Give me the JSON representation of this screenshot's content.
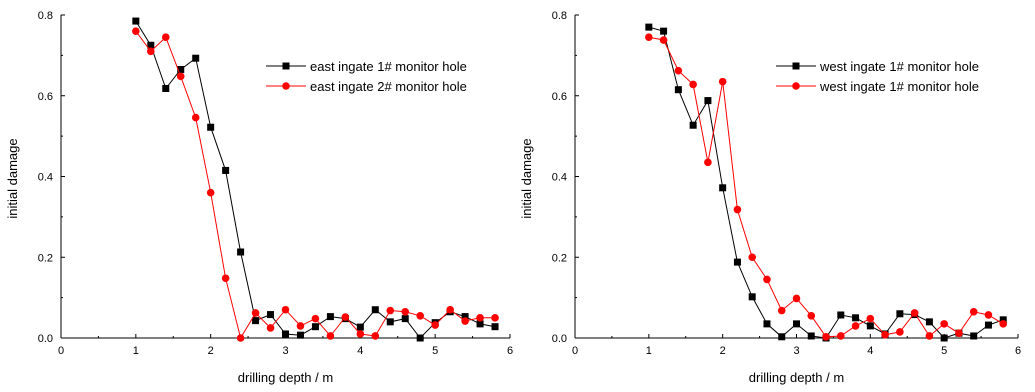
{
  "chart_data": [
    {
      "type": "line",
      "xlabel": "drilling depth / m",
      "ylabel": "initial damage",
      "xlim": [
        0,
        6
      ],
      "ylim": [
        0,
        0.8
      ],
      "xticks": [
        0,
        1,
        2,
        3,
        4,
        5,
        6
      ],
      "yticks": [
        0.0,
        0.2,
        0.4,
        0.6,
        0.8
      ],
      "grid": false,
      "legend_position": "top-right",
      "series": [
        {
          "name": "east ingate 1# monitor hole",
          "color": "#000000",
          "marker": "square",
          "x": [
            1.0,
            1.2,
            1.4,
            1.6,
            1.8,
            2.0,
            2.2,
            2.4,
            2.6,
            2.8,
            3.0,
            3.2,
            3.4,
            3.6,
            3.8,
            4.0,
            4.2,
            4.4,
            4.6,
            4.8,
            5.0,
            5.2,
            5.4,
            5.6,
            5.8
          ],
          "y": [
            0.785,
            0.725,
            0.618,
            0.665,
            0.693,
            0.522,
            0.415,
            0.213,
            0.043,
            0.058,
            0.01,
            0.007,
            0.028,
            0.053,
            0.048,
            0.027,
            0.07,
            0.04,
            0.048,
            0.0,
            0.038,
            0.065,
            0.053,
            0.035,
            0.028
          ]
        },
        {
          "name": "east ingate 2# monitor hole",
          "color": "#ff0000",
          "marker": "circle",
          "x": [
            1.0,
            1.2,
            1.4,
            1.6,
            1.8,
            2.0,
            2.2,
            2.4,
            2.6,
            2.8,
            3.0,
            3.2,
            3.4,
            3.6,
            3.8,
            4.0,
            4.2,
            4.4,
            4.6,
            4.8,
            5.0,
            5.2,
            5.4,
            5.6,
            5.8
          ],
          "y": [
            0.76,
            0.71,
            0.745,
            0.648,
            0.546,
            0.36,
            0.148,
            0.0,
            0.062,
            0.025,
            0.07,
            0.03,
            0.048,
            0.005,
            0.052,
            0.01,
            0.005,
            0.068,
            0.065,
            0.055,
            0.032,
            0.07,
            0.042,
            0.05,
            0.05
          ]
        }
      ]
    },
    {
      "type": "line",
      "xlabel": "drilling depth / m",
      "ylabel": "initial damage",
      "xlim": [
        0,
        6
      ],
      "ylim": [
        0,
        0.8
      ],
      "xticks": [
        0,
        1,
        2,
        3,
        4,
        5,
        6
      ],
      "yticks": [
        0.0,
        0.2,
        0.4,
        0.6,
        0.8
      ],
      "grid": false,
      "legend_position": "top-right",
      "series": [
        {
          "name": "west ingate 1# monitor hole",
          "color": "#000000",
          "marker": "square",
          "x": [
            1.0,
            1.2,
            1.4,
            1.6,
            1.8,
            2.0,
            2.2,
            2.4,
            2.6,
            2.8,
            3.0,
            3.2,
            3.4,
            3.6,
            3.8,
            4.0,
            4.2,
            4.4,
            4.6,
            4.8,
            5.0,
            5.2,
            5.4,
            5.6,
            5.8
          ],
          "y": [
            0.77,
            0.76,
            0.615,
            0.527,
            0.588,
            0.372,
            0.188,
            0.102,
            0.035,
            0.003,
            0.035,
            0.005,
            0.0,
            0.057,
            0.05,
            0.03,
            0.01,
            0.06,
            0.058,
            0.04,
            0.0,
            0.012,
            0.005,
            0.032,
            0.045
          ]
        },
        {
          "name": "west ingate 1# monitor hole",
          "color": "#ff0000",
          "marker": "circle",
          "x": [
            1.0,
            1.2,
            1.4,
            1.6,
            1.8,
            2.0,
            2.2,
            2.4,
            2.6,
            2.8,
            3.0,
            3.2,
            3.4,
            3.6,
            3.8,
            4.0,
            4.2,
            4.4,
            4.6,
            4.8,
            5.0,
            5.2,
            5.4,
            5.6,
            5.8
          ],
          "y": [
            0.745,
            0.738,
            0.662,
            0.628,
            0.435,
            0.635,
            0.318,
            0.2,
            0.145,
            0.068,
            0.098,
            0.055,
            0.003,
            0.005,
            0.03,
            0.048,
            0.008,
            0.015,
            0.062,
            0.005,
            0.035,
            0.012,
            0.065,
            0.057,
            0.035
          ]
        }
      ]
    }
  ]
}
